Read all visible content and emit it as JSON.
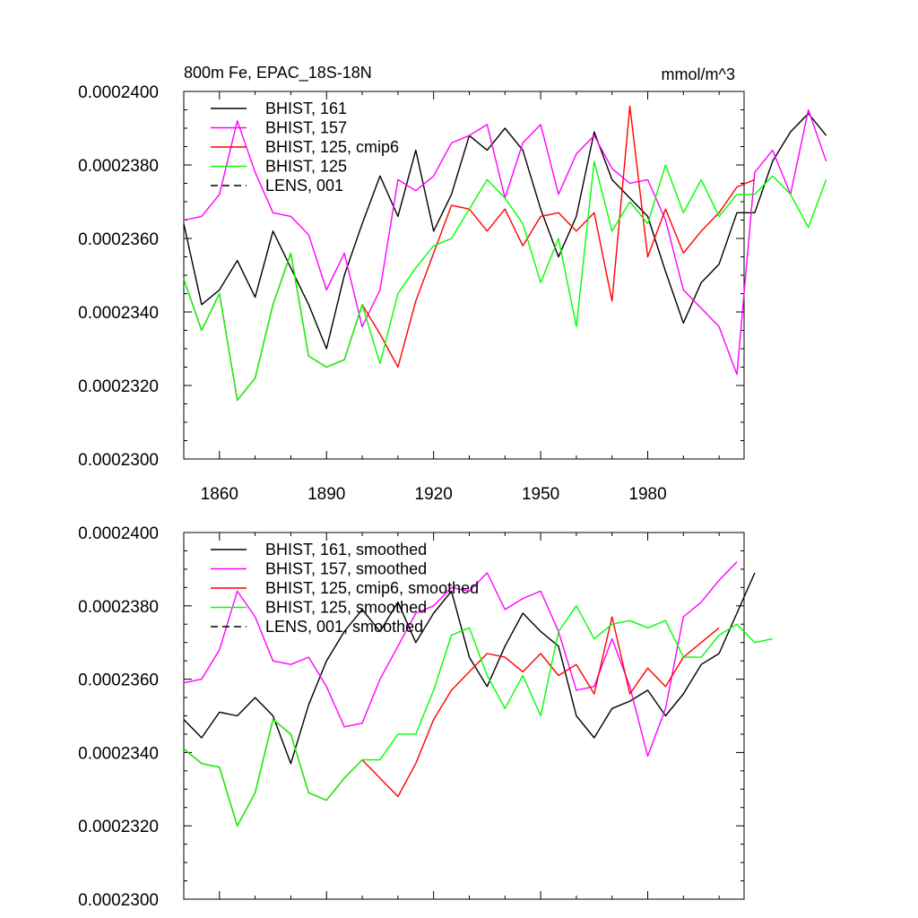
{
  "chart_data": [
    {
      "type": "line",
      "title": "800m Fe, EPAC_18S-18N",
      "units": "mmol/m^3",
      "xlim": [
        1850,
        2007
      ],
      "ylim": [
        0.00023,
        0.00024
      ],
      "xticks": [
        1860,
        1890,
        1920,
        1950,
        1980
      ],
      "yticks": [
        0.00023,
        0.000232,
        0.000234,
        0.000236,
        0.000238,
        0.00024
      ],
      "ytick_labels": [
        "0.0002300",
        "0.0002320",
        "0.0002340",
        "0.0002360",
        "0.0002380",
        "0.0002400"
      ],
      "show_xtick_labels": true,
      "legend": "top-left",
      "series": [
        {
          "name": "BHIST, 161",
          "color": "#000000",
          "dash": "solid",
          "x_start": 1850,
          "x_step": 5,
          "values": [
            0.0002364,
            0.0002342,
            0.0002346,
            0.0002354,
            0.0002344,
            0.0002362,
            0.0002352,
            0.0002342,
            0.000233,
            0.000235,
            0.0002364,
            0.0002377,
            0.0002366,
            0.0002384,
            0.0002362,
            0.0002372,
            0.0002388,
            0.0002384,
            0.000239,
            0.0002384,
            0.0002368,
            0.0002355,
            0.0002366,
            0.0002389,
            0.0002376,
            0.0002371,
            0.0002366,
            0.0002351,
            0.0002337,
            0.0002348,
            0.0002353,
            0.0002367,
            0.0002367,
            0.0002381,
            0.0002389,
            0.0002394,
            0.0002388
          ]
        },
        {
          "name": "BHIST, 157",
          "color": "#ff00ff",
          "dash": "solid",
          "x_start": 1850,
          "x_step": 5,
          "values": [
            0.0002365,
            0.0002366,
            0.0002372,
            0.0002392,
            0.0002378,
            0.0002367,
            0.0002366,
            0.0002361,
            0.0002346,
            0.0002356,
            0.0002336,
            0.0002346,
            0.0002376,
            0.0002373,
            0.0002377,
            0.0002386,
            0.0002388,
            0.0002391,
            0.0002371,
            0.0002386,
            0.0002391,
            0.0002372,
            0.0002383,
            0.0002388,
            0.0002379,
            0.0002375,
            0.0002376,
            0.0002365,
            0.0002346,
            0.0002341,
            0.0002336,
            0.0002323,
            0.0002378,
            0.0002384,
            0.0002372,
            0.0002395,
            0.0002381
          ]
        },
        {
          "name": "BHIST, 125, cmip6",
          "color": "#ff0000",
          "dash": "solid",
          "x_start": 1850,
          "x_step": 5,
          "values": [
            0.0002349,
            0.0002335,
            0.0002345,
            0.0002316,
            0.0002322,
            0.0002342,
            0.0002356,
            0.0002328,
            0.0002325,
            0.0002327,
            0.0002342,
            0.0002334,
            0.0002325,
            0.0002343,
            0.0002356,
            0.0002369,
            0.0002368,
            0.0002362,
            0.0002368,
            0.0002358,
            0.0002366,
            0.0002367,
            0.0002362,
            0.0002367,
            0.0002343,
            0.0002396,
            0.0002355,
            0.0002368,
            0.0002356,
            0.0002362,
            0.0002367,
            0.0002374,
            0.0002376
          ]
        },
        {
          "name": "BHIST, 125",
          "color": "#00ff00",
          "dash": "solid",
          "x_start": 1850,
          "x_step": 5,
          "values": [
            0.0002349,
            0.0002335,
            0.0002345,
            0.0002316,
            0.0002322,
            0.0002342,
            0.0002356,
            0.0002328,
            0.0002325,
            0.0002327,
            0.0002342,
            0.0002326,
            0.0002345,
            0.0002352,
            0.0002358,
            0.000236,
            0.0002368,
            0.0002376,
            0.0002371,
            0.0002364,
            0.0002348,
            0.000236,
            0.0002336,
            0.0002381,
            0.0002362,
            0.000237,
            0.0002364,
            0.000238,
            0.0002367,
            0.0002376,
            0.0002366,
            0.0002372,
            0.0002372,
            0.0002377,
            0.0002372,
            0.0002363,
            0.0002376
          ]
        },
        {
          "name": "LENS, 001",
          "color": "#000000",
          "dash": "dashed",
          "x_start": 1850,
          "x_step": 5,
          "values": []
        }
      ]
    },
    {
      "type": "line",
      "title": "",
      "units": "",
      "xlim": [
        1850,
        2007
      ],
      "ylim": [
        0.00023,
        0.00024
      ],
      "xticks": [
        1860,
        1890,
        1920,
        1950,
        1980
      ],
      "yticks": [
        0.00023,
        0.000232,
        0.000234,
        0.000236,
        0.000238,
        0.00024
      ],
      "ytick_labels": [
        "0.0002300",
        "0.0002320",
        "0.0002340",
        "0.0002360",
        "0.0002380",
        "0.0002400"
      ],
      "show_xtick_labels": false,
      "legend": "top-left",
      "series": [
        {
          "name": "BHIST, 161, smoothed",
          "color": "#000000",
          "dash": "solid",
          "x_start": 1850,
          "x_step": 5,
          "values": [
            0.0002349,
            0.0002344,
            0.0002351,
            0.000235,
            0.0002355,
            0.000235,
            0.0002337,
            0.0002353,
            0.0002365,
            0.0002373,
            0.0002379,
            0.0002373,
            0.0002381,
            0.000237,
            0.0002378,
            0.0002384,
            0.0002366,
            0.0002358,
            0.0002369,
            0.0002378,
            0.0002373,
            0.0002369,
            0.000235,
            0.0002344,
            0.0002352,
            0.0002354,
            0.0002357,
            0.000235,
            0.0002356,
            0.0002364,
            0.0002367,
            0.0002378,
            0.0002389
          ]
        },
        {
          "name": "BHIST, 157, smoothed",
          "color": "#ff00ff",
          "dash": "solid",
          "x_start": 1850,
          "x_step": 5,
          "values": [
            0.0002359,
            0.000236,
            0.0002368,
            0.0002384,
            0.0002377,
            0.0002365,
            0.0002364,
            0.0002366,
            0.0002358,
            0.0002347,
            0.0002348,
            0.000236,
            0.0002369,
            0.0002378,
            0.000238,
            0.0002385,
            0.0002384,
            0.0002389,
            0.0002379,
            0.0002382,
            0.0002384,
            0.0002373,
            0.0002357,
            0.0002358,
            0.0002371,
            0.0002358,
            0.0002339,
            0.0002352,
            0.0002377,
            0.0002381,
            0.0002387,
            0.0002392
          ]
        },
        {
          "name": "BHIST, 125, cmip6, smoothed",
          "color": "#ff0000",
          "dash": "solid",
          "x_start": 1850,
          "x_step": 5,
          "values": [
            0.0002341,
            0.0002337,
            0.0002336,
            0.000232,
            0.0002329,
            0.0002349,
            0.0002345,
            0.0002329,
            0.0002327,
            0.0002333,
            0.0002338,
            0.0002333,
            0.0002328,
            0.0002337,
            0.0002349,
            0.0002357,
            0.0002362,
            0.0002367,
            0.0002366,
            0.0002362,
            0.0002367,
            0.0002361,
            0.0002364,
            0.0002356,
            0.0002377,
            0.0002356,
            0.0002363,
            0.0002358,
            0.0002366,
            0.000237,
            0.0002374
          ]
        },
        {
          "name": "BHIST, 125, smoothed",
          "color": "#00ff00",
          "dash": "solid",
          "x_start": 1850,
          "x_step": 5,
          "values": [
            0.0002341,
            0.0002337,
            0.0002336,
            0.000232,
            0.0002329,
            0.0002349,
            0.0002345,
            0.0002329,
            0.0002327,
            0.0002333,
            0.0002338,
            0.0002338,
            0.0002345,
            0.0002345,
            0.0002357,
            0.0002372,
            0.0002374,
            0.0002361,
            0.0002352,
            0.0002361,
            0.000235,
            0.0002373,
            0.000238,
            0.0002371,
            0.0002375,
            0.0002376,
            0.0002374,
            0.0002376,
            0.0002366,
            0.0002366,
            0.0002372,
            0.0002375,
            0.000237,
            0.0002371
          ]
        },
        {
          "name": "LENS, 001, smoothed",
          "color": "#000000",
          "dash": "dashed",
          "x_start": 1850,
          "x_step": 5,
          "values": []
        }
      ]
    }
  ]
}
